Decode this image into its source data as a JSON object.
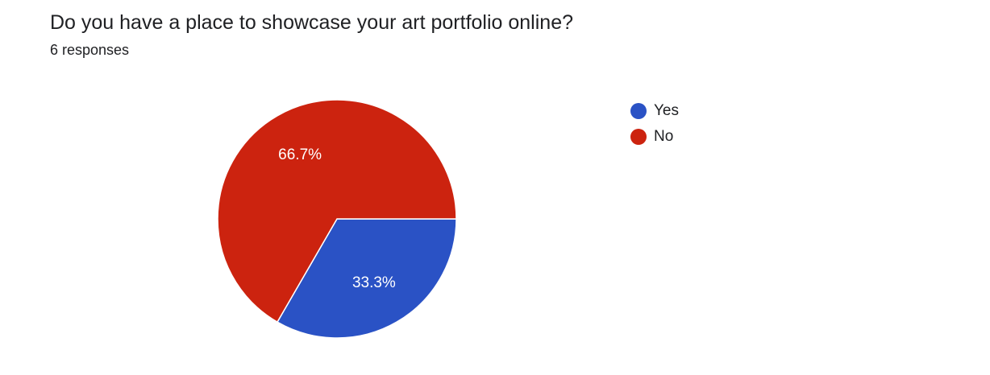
{
  "question": {
    "title": "Do you have a place to showcase your art portfolio online?",
    "response_count": "6 responses"
  },
  "chart_data": {
    "type": "pie",
    "categories": [
      "Yes",
      "No"
    ],
    "values": [
      2,
      4
    ],
    "percent_labels": [
      "33.3%",
      "66.7%"
    ],
    "colors": [
      "#2a52c5",
      "#cc230f"
    ],
    "legend_position": "top-right"
  }
}
